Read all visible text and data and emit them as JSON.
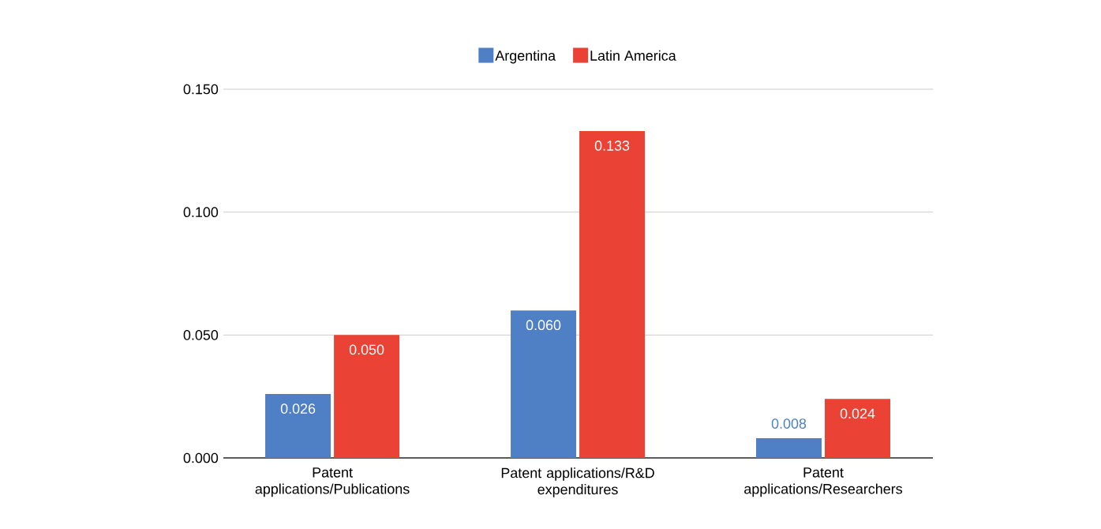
{
  "chart_data": {
    "type": "bar",
    "categories": [
      "Patent applications/Publications",
      "Patent applications/R&D expenditures",
      "Patent applications/Researchers"
    ],
    "series": [
      {
        "name": "Argentina",
        "color": "#4f7fc4",
        "values": [
          0.026,
          0.06,
          0.008
        ],
        "value_labels": [
          "0.026",
          "0.060",
          "0.008"
        ]
      },
      {
        "name": "Latin America",
        "color": "#ea4335",
        "values": [
          0.05,
          0.133,
          0.024
        ],
        "value_labels": [
          "0.050",
          "0.133",
          "0.024"
        ]
      }
    ],
    "ylim": [
      0,
      0.15
    ],
    "yticks": [
      {
        "value": 0,
        "label": "0.000"
      },
      {
        "value": 0.05,
        "label": "0.050"
      },
      {
        "value": 0.1,
        "label": "0.100"
      },
      {
        "value": 0.15,
        "label": "0.150"
      }
    ],
    "grid": "y",
    "legend": "top"
  }
}
